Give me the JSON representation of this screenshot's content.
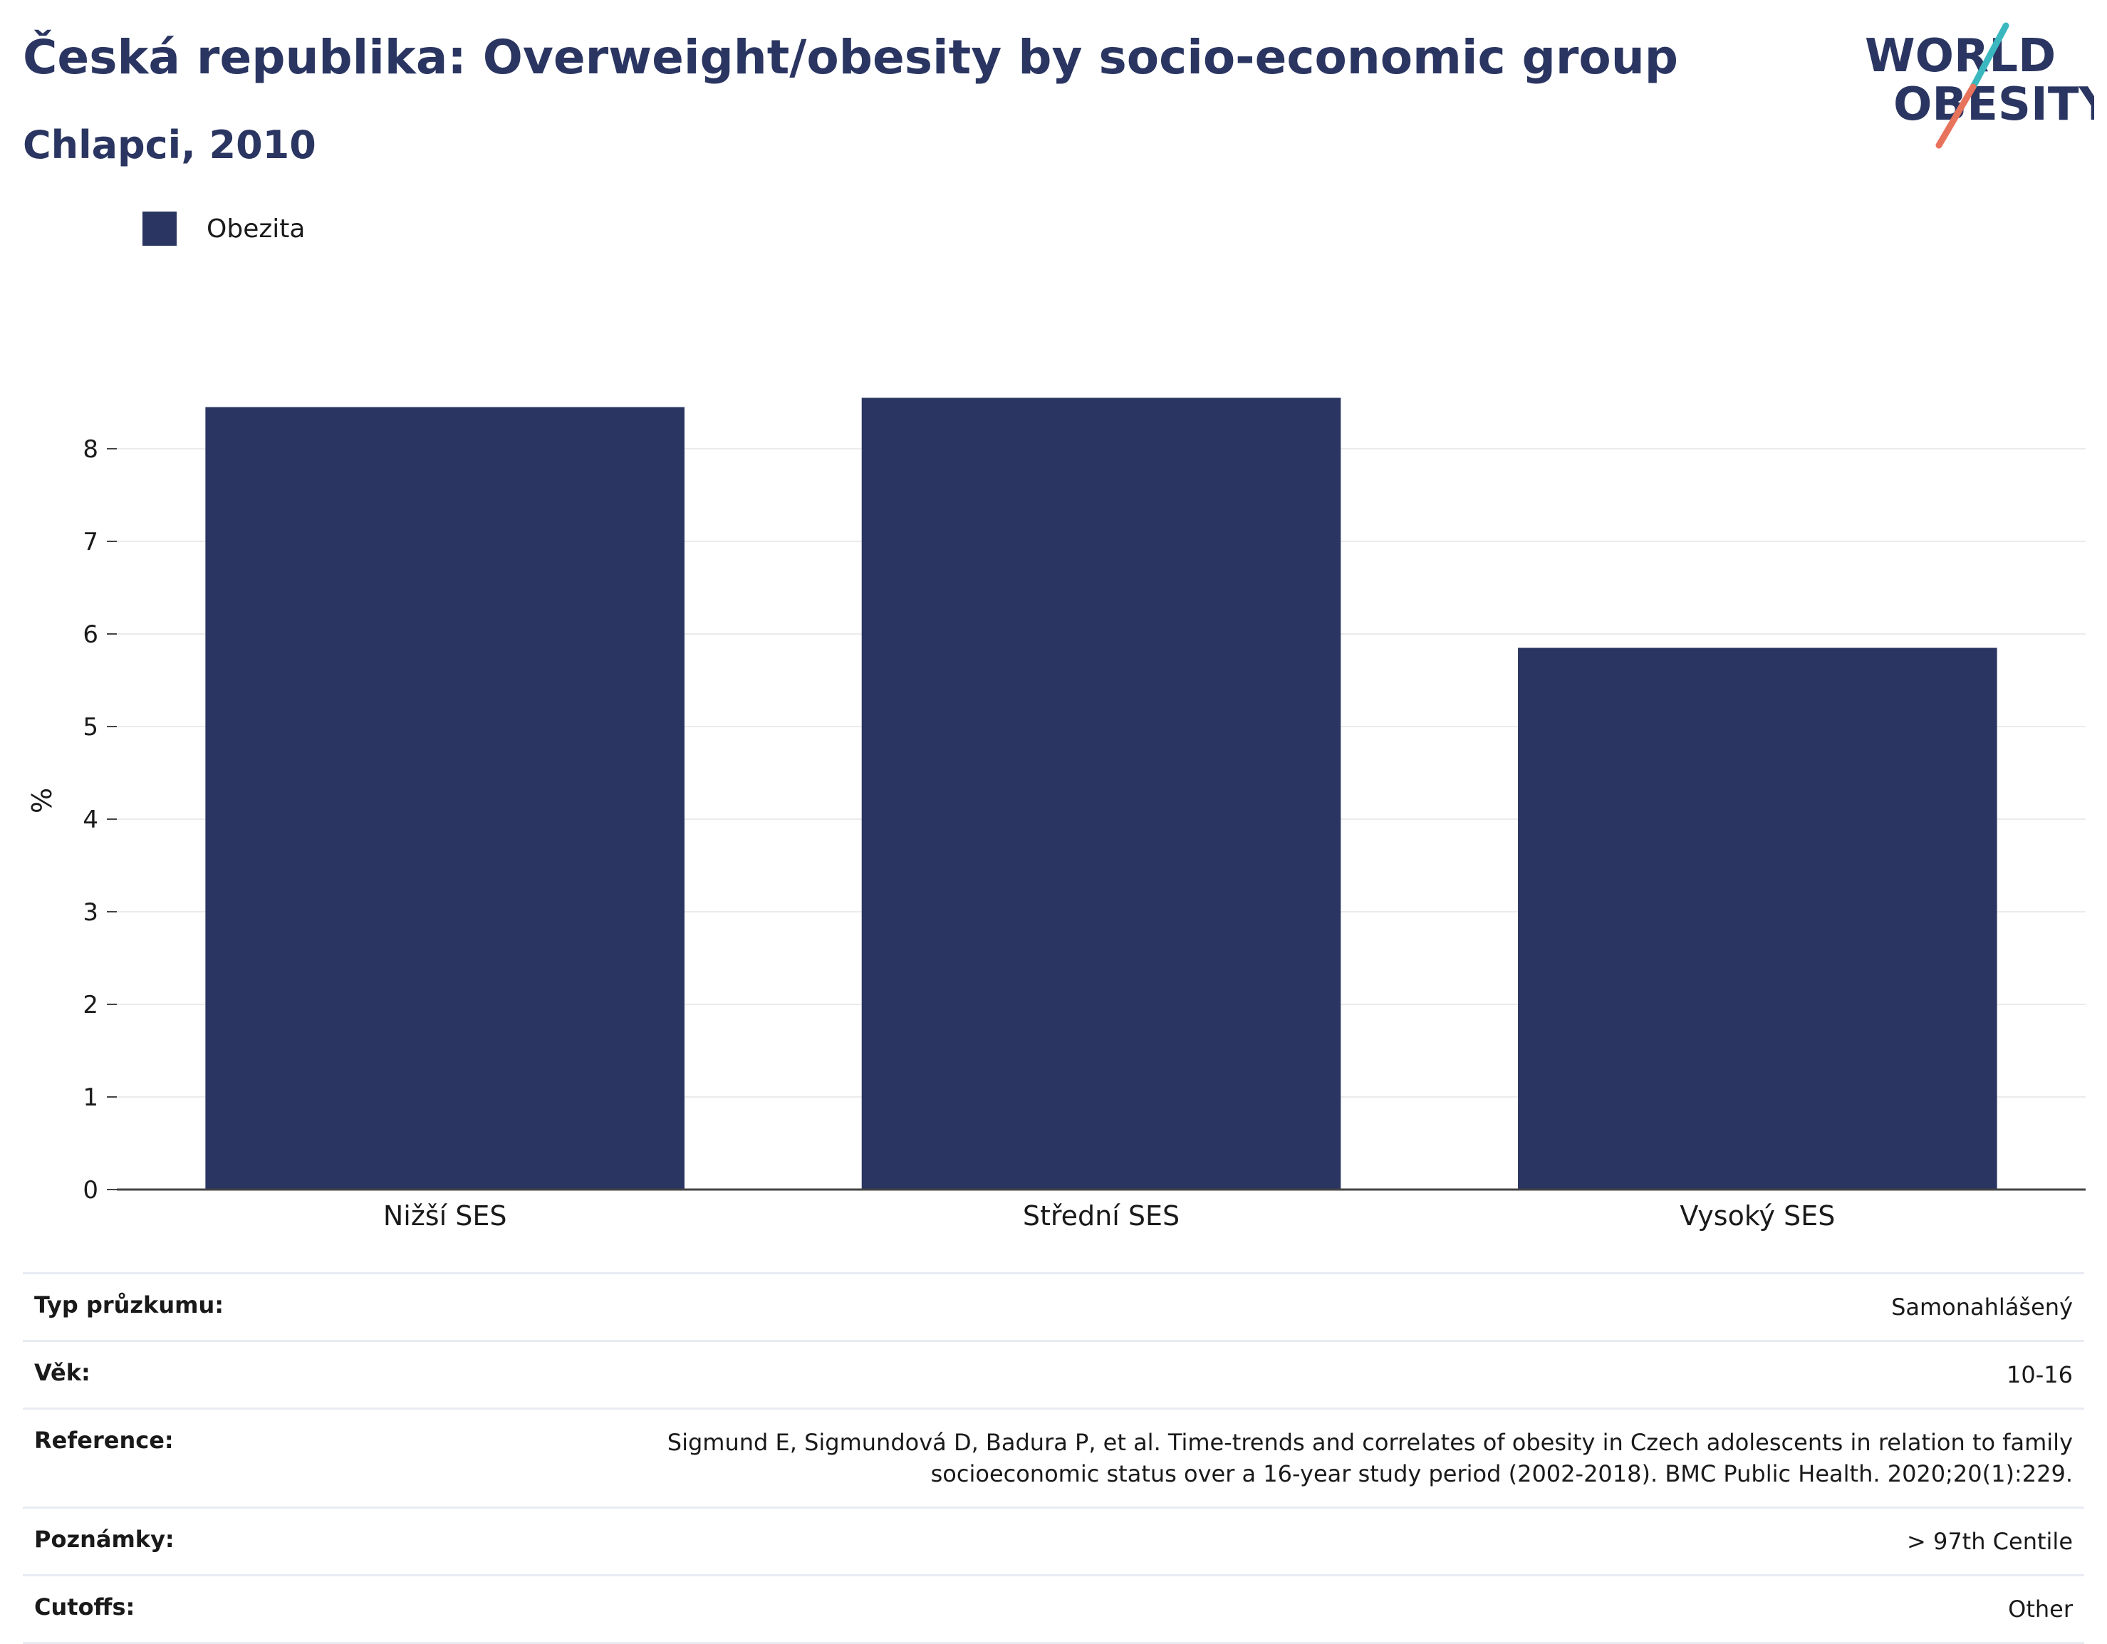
{
  "header": {
    "title": "Česká republika: Overweight/obesity by socio-economic group",
    "subtitle": "Chlapci, 2010"
  },
  "logo": {
    "line1": "WORLD",
    "line2": "OBESITY",
    "text_color": "#2a3561",
    "slash_teal": "#3ab7bf",
    "slash_coral": "#e8735d"
  },
  "legend": {
    "items": [
      {
        "label": "Obezita",
        "color": "#2a3561"
      }
    ]
  },
  "chart_data": {
    "type": "bar",
    "categories": [
      "Nižší SES",
      "Střední SES",
      "Vysoký SES"
    ],
    "series": [
      {
        "name": "Obezita",
        "values": [
          8.45,
          8.55,
          5.85
        ],
        "color": "#2a3561"
      }
    ],
    "title": "Česká republika: Overweight/obesity by socio-economic group",
    "subtitle": "Chlapci, 2010",
    "xlabel": "",
    "ylabel": "%",
    "ylim": [
      0,
      8.6
    ],
    "yticks": [
      0,
      1,
      2,
      3,
      4,
      5,
      6,
      7,
      8
    ],
    "grid": true,
    "legend_position": "top-left"
  },
  "info": {
    "rows": [
      {
        "label": "Typ průzkumu:",
        "value": [
          "Samonahlášený"
        ]
      },
      {
        "label": "Věk:",
        "value": [
          "10-16"
        ]
      },
      {
        "label": "Reference:",
        "value": [
          "Sigmund E, Sigmundová D, Badura P, et al. Time-trends and correlates of obesity in Czech adolescents in relation to family",
          "socioeconomic status over a 16-year study period (2002-2018). BMC Public Health. 2020;20(1):229."
        ]
      },
      {
        "label": "Poznámky:",
        "value": [
          "> 97th Centile"
        ]
      },
      {
        "label": "Cutoffs:",
        "value": [
          "Other"
        ]
      }
    ]
  }
}
